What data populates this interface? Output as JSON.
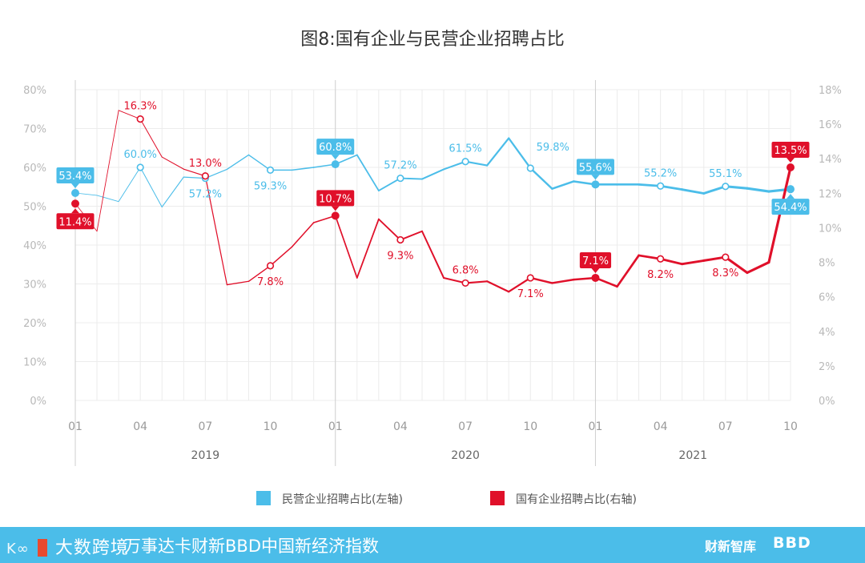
{
  "chart_data": {
    "type": "line",
    "title": "图8:国有企业与民营企业招聘占比",
    "x_ticks": [
      "01",
      "04",
      "07",
      "10",
      "01",
      "04",
      "07",
      "10",
      "01",
      "04",
      "07",
      "10"
    ],
    "years": [
      "2019",
      "2020",
      "2021"
    ],
    "y_left": {
      "min": 0,
      "max": 80,
      "step": 10,
      "unit": "%"
    },
    "y_right": {
      "min": 0,
      "max": 18,
      "step": 2,
      "unit": "%"
    },
    "grid": true,
    "legend_position": "bottom",
    "series": [
      {
        "name": "民营企业招聘占比(左轴)",
        "axis": "left",
        "color": "#4bbde9",
        "values": [
          53.4,
          52.8,
          51.2,
          60.0,
          49.8,
          57.5,
          57.2,
          59.5,
          63.2,
          59.3,
          59.3,
          60.0,
          60.8,
          63.2,
          54.0,
          57.2,
          57.0,
          59.5,
          61.5,
          60.5,
          67.5,
          59.8,
          54.5,
          56.4,
          55.6,
          55.6,
          55.6,
          55.2,
          54.3,
          53.3,
          55.1,
          54.6,
          53.8,
          54.4
        ],
        "labels": [
          {
            "i": 0,
            "text": "53.4%",
            "style": "box",
            "pos": "above"
          },
          {
            "i": 3,
            "text": "60.0%",
            "style": "plain",
            "pos": "above"
          },
          {
            "i": 6,
            "text": "57.2%",
            "style": "plain",
            "pos": "below"
          },
          {
            "i": 9,
            "text": "59.3%",
            "style": "plain",
            "pos": "below"
          },
          {
            "i": 12,
            "text": "60.8%",
            "style": "box",
            "pos": "above"
          },
          {
            "i": 15,
            "text": "57.2%",
            "style": "plain",
            "pos": "above"
          },
          {
            "i": 18,
            "text": "61.5%",
            "style": "plain",
            "pos": "above"
          },
          {
            "i": 21,
            "text": "59.8%",
            "style": "plain",
            "pos": "above-right"
          },
          {
            "i": 24,
            "text": "55.6%",
            "style": "box",
            "pos": "above"
          },
          {
            "i": 27,
            "text": "55.2%",
            "style": "plain",
            "pos": "above"
          },
          {
            "i": 30,
            "text": "55.1%",
            "style": "plain",
            "pos": "above"
          },
          {
            "i": 33,
            "text": "54.4%",
            "style": "box",
            "pos": "below"
          }
        ]
      },
      {
        "name": "国有企业招聘占比(右轴)",
        "axis": "right",
        "color": "#e0102a",
        "values": [
          11.4,
          9.8,
          16.8,
          16.3,
          14.1,
          13.4,
          13.0,
          6.7,
          6.9,
          7.8,
          8.9,
          10.3,
          10.7,
          7.1,
          10.5,
          9.3,
          9.8,
          7.1,
          6.8,
          6.9,
          6.3,
          7.1,
          6.8,
          7.0,
          7.1,
          6.6,
          8.4,
          8.2,
          7.9,
          8.1,
          8.3,
          7.4,
          8.0,
          13.5
        ],
        "labels": [
          {
            "i": 0,
            "text": "11.4%",
            "style": "box",
            "pos": "below"
          },
          {
            "i": 3,
            "text": "16.3%",
            "style": "plain",
            "pos": "above"
          },
          {
            "i": 6,
            "text": "13.0%",
            "style": "plain",
            "pos": "above"
          },
          {
            "i": 9,
            "text": "7.8%",
            "style": "plain",
            "pos": "below"
          },
          {
            "i": 12,
            "text": "10.7%",
            "style": "box",
            "pos": "above"
          },
          {
            "i": 15,
            "text": "9.3%",
            "style": "plain",
            "pos": "below"
          },
          {
            "i": 18,
            "text": "6.8%",
            "style": "plain",
            "pos": "above"
          },
          {
            "i": 21,
            "text": "7.1%",
            "style": "plain",
            "pos": "below"
          },
          {
            "i": 24,
            "text": "7.1%",
            "style": "box",
            "pos": "above"
          },
          {
            "i": 27,
            "text": "8.2%",
            "style": "plain",
            "pos": "below"
          },
          {
            "i": 30,
            "text": "8.3%",
            "style": "plain",
            "pos": "below"
          },
          {
            "i": 33,
            "text": "13.5%",
            "style": "box",
            "pos": "above"
          }
        ]
      }
    ]
  },
  "footer": {
    "logo_text": "大数跨境",
    "logo_mark": "K∞",
    "index_name": "万事达卡财新BBD中国新经济指数",
    "brand_1": "财新智库",
    "brand_2": "BBD"
  },
  "colors": {
    "blue": "#4bbde9",
    "red": "#e0102a",
    "grid": "#ececec"
  }
}
